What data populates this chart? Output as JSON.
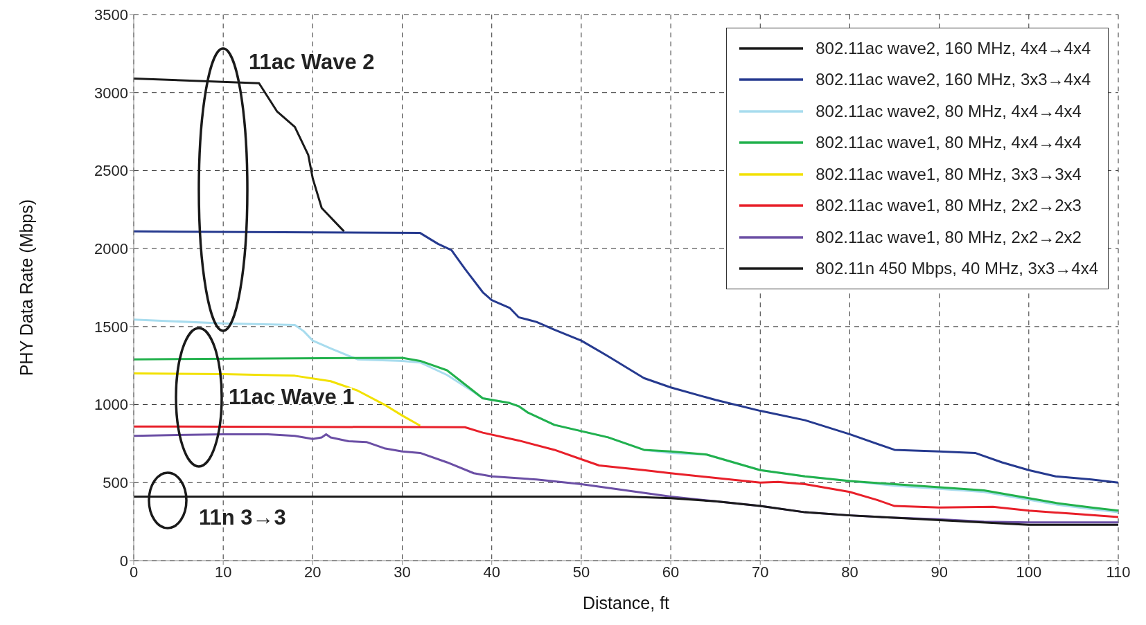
{
  "chart_data": {
    "type": "line",
    "xlabel": "Distance, ft",
    "ylabel": "PHY Data Rate (Mbps)",
    "xlim": [
      0,
      110
    ],
    "xticks": [
      0,
      10,
      20,
      30,
      40,
      50,
      60,
      70,
      80,
      90,
      100,
      110
    ],
    "ylim": [
      0,
      3500
    ],
    "yticks": [
      0,
      500,
      1000,
      1500,
      2000,
      2500,
      3000,
      3500
    ],
    "grid": true,
    "legend": "top right",
    "marker": "none",
    "line_style": "solid",
    "annotations": [
      "11ac Wave 2",
      "11ac Wave 1",
      "11n 3→3"
    ],
    "series": [
      {
        "name": "802.11ac wave2, 160 MHz, 4x4→4x4",
        "color": "#1a1a1a",
        "x": [
          0,
          14,
          16,
          18,
          19.5,
          20,
          21,
          23.5
        ],
        "values": [
          3090,
          3060,
          2880,
          2780,
          2600,
          2450,
          2260,
          2110
        ]
      },
      {
        "name": "802.11ac wave2, 160 MHz, 3x3→4x4",
        "color": "#263a8f",
        "x": [
          0,
          32,
          34,
          35.5,
          37,
          39,
          40,
          42,
          43,
          45,
          47,
          50,
          53,
          57,
          60,
          65,
          70,
          75,
          80,
          85,
          90,
          94,
          97,
          100,
          103,
          107,
          110
        ],
        "values": [
          2110,
          2100,
          2030,
          1990,
          1870,
          1720,
          1670,
          1620,
          1560,
          1530,
          1480,
          1410,
          1310,
          1170,
          1110,
          1030,
          960,
          900,
          810,
          710,
          700,
          690,
          630,
          580,
          540,
          520,
          500
        ]
      },
      {
        "name": "802.11ac wave2, 80 MHz, 4x4→4x4",
        "color": "#a8dcee",
        "x": [
          0,
          10,
          18,
          19,
          20,
          22,
          25,
          30,
          32,
          35,
          38,
          39,
          42,
          43,
          44,
          47,
          50,
          53,
          57,
          60,
          64,
          70,
          75,
          80,
          85,
          90,
          95,
          100,
          103,
          107,
          110
        ],
        "values": [
          1545,
          1520,
          1510,
          1470,
          1410,
          1360,
          1290,
          1280,
          1270,
          1190,
          1080,
          1040,
          1010,
          990,
          950,
          870,
          830,
          790,
          710,
          690,
          680,
          580,
          540,
          510,
          480,
          460,
          440,
          390,
          360,
          330,
          310
        ]
      },
      {
        "name": "802.11ac wave1, 80 MHz, 4x4→4x4",
        "color": "#22b14c",
        "x": [
          0,
          30,
          32,
          35,
          37,
          39,
          42,
          43,
          44,
          47,
          50,
          53,
          57,
          60,
          64,
          70,
          75,
          80,
          85,
          90,
          95,
          100,
          103,
          107,
          110
        ],
        "values": [
          1290,
          1300,
          1280,
          1220,
          1130,
          1040,
          1010,
          990,
          950,
          870,
          830,
          790,
          710,
          700,
          680,
          580,
          540,
          510,
          490,
          470,
          450,
          400,
          370,
          340,
          320
        ]
      },
      {
        "name": "802.11ac wave1, 80 MHz, 3x3→3x4",
        "color": "#f2e100",
        "x": [
          0,
          10,
          18,
          22,
          25,
          28,
          30,
          32
        ],
        "values": [
          1200,
          1195,
          1185,
          1150,
          1090,
          1000,
          930,
          865
        ]
      },
      {
        "name": "802.11ac wave1, 80 MHz, 2x2→2x3",
        "color": "#e8202a",
        "x": [
          0,
          37,
          39,
          43,
          47,
          50,
          52,
          57,
          60,
          65,
          70,
          72,
          75,
          80,
          83,
          85,
          90,
          96,
          100,
          105,
          110
        ],
        "values": [
          860,
          855,
          820,
          770,
          710,
          650,
          610,
          580,
          560,
          530,
          500,
          505,
          490,
          440,
          390,
          350,
          340,
          345,
          320,
          300,
          280
        ]
      },
      {
        "name": "802.11ac wave1, 80 MHz, 2x2→2x2",
        "color": "#6b4fa5",
        "x": [
          0,
          10,
          15,
          18,
          20,
          21,
          21.5,
          22,
          24,
          26,
          28,
          30,
          32,
          35,
          38,
          40,
          45,
          50,
          55,
          60,
          65,
          70,
          75,
          80,
          85,
          90,
          95,
          100,
          110
        ],
        "values": [
          800,
          810,
          810,
          800,
          780,
          790,
          810,
          790,
          765,
          760,
          720,
          700,
          690,
          630,
          560,
          540,
          520,
          490,
          450,
          410,
          380,
          350,
          310,
          290,
          275,
          265,
          250,
          245,
          245
        ]
      },
      {
        "name": "802.11n 450 Mbps, 40 MHz, 3x3→4x4",
        "color": "#1a1a1a",
        "x": [
          0,
          55,
          60,
          65,
          70,
          75,
          80,
          85,
          90,
          100,
          110
        ],
        "values": [
          410,
          410,
          400,
          380,
          350,
          310,
          290,
          275,
          260,
          230,
          230
        ]
      }
    ]
  }
}
